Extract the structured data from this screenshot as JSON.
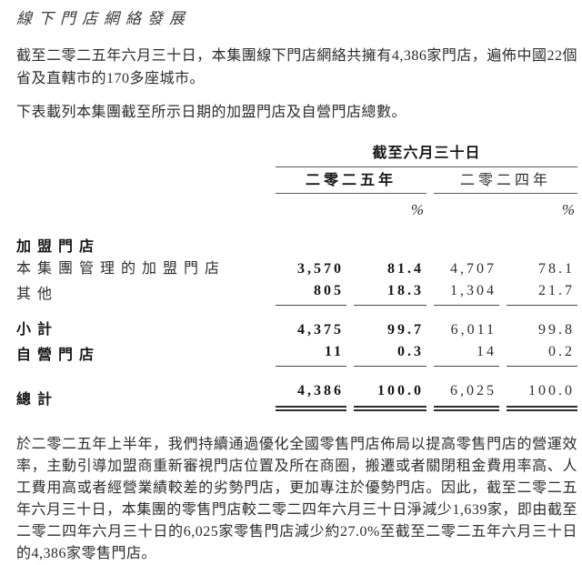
{
  "page": {
    "title": "線下門店網絡發展",
    "para1": "截至二零二五年六月三十日，本集團線下門店網絡共擁有4,386家門店，遍佈中國22個省及直轄市的170多座城市。",
    "para2": "下表載列本集團截至所示日期的加盟門店及自營門店總數。",
    "para3": "於二零二五年上半年，我們持續通過優化全國零售門店佈局以提高零售門店的營運效率，主動引導加盟商重新審視門店位置及所在商圈，搬遷或者關閉租金費用率高、人工費用高或者經營業績較差的劣勢門店，更加專注於優勢門店。因此，截至二零二五年六月三十日，本集團的零售門店較二零二四年六月三十日淨減少1,639家，即由截至二零二四年六月三十日的6,025家零售門店減少約27.0%至截至二零二五年六月三十日的4,386家零售門店。"
  },
  "table": {
    "span_header": "截至六月三十日",
    "col_groups": {
      "y2025": "二零二五年",
      "y2024": "二零二四年"
    },
    "pct_symbol": "%",
    "rows": [
      {
        "label": "加盟門店",
        "v2025": "",
        "p2025": "",
        "v2024": "",
        "p2024": ""
      },
      {
        "label": "本集團管理的加盟門店",
        "v2025": "3,570",
        "p2025": "81.4",
        "v2024": "4,707",
        "p2024": "78.1"
      },
      {
        "label": "其他",
        "v2025": "805",
        "p2025": "18.3",
        "v2024": "1,304",
        "p2024": "21.7"
      },
      {
        "label": "小計",
        "v2025": "4,375",
        "p2025": "99.7",
        "v2024": "6,011",
        "p2024": "99.8"
      },
      {
        "label": "自營門店",
        "v2025": "11",
        "p2025": "0.3",
        "v2024": "14",
        "p2024": "0.2"
      },
      {
        "label": "總計",
        "v2025": "4,386",
        "p2025": "100.0",
        "v2024": "6,025",
        "p2024": "100.0"
      }
    ]
  },
  "colors": {
    "text": "#2d2d2d",
    "bold_text": "#181818",
    "rule": "#474747",
    "background": "#ffffff"
  }
}
